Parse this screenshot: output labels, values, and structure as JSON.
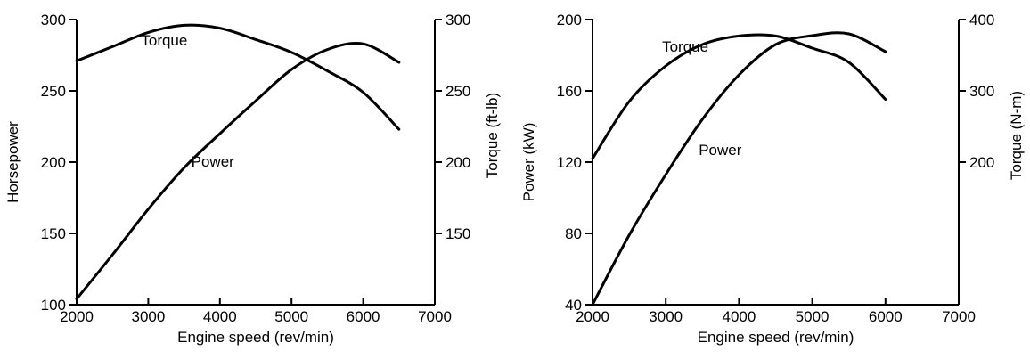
{
  "chart_data": [
    {
      "type": "line",
      "xlabel": "Engine speed (rev/min)",
      "ylabel": "Horsepower",
      "y2label": "Torque (ft-lb)",
      "xlim": [
        2000,
        7000
      ],
      "ylim": [
        100,
        300
      ],
      "y2lim": [
        100,
        300
      ],
      "x_ticks": [
        2000,
        3000,
        4000,
        5000,
        6000,
        7000
      ],
      "y_ticks": [
        100,
        150,
        200,
        250,
        300
      ],
      "y2_ticks": [
        150,
        200,
        250,
        300
      ],
      "grid": false,
      "series": [
        {
          "name": "Torque",
          "axis": "right",
          "x": [
            2000,
            2500,
            3000,
            3500,
            4000,
            4500,
            5000,
            5500,
            6000,
            6500
          ],
          "y": [
            271,
            281,
            291,
            296,
            294,
            286,
            277,
            264,
            249,
            223
          ]
        },
        {
          "name": "Power",
          "axis": "left",
          "x": [
            2000,
            2500,
            3000,
            3500,
            4000,
            4500,
            5000,
            5500,
            6000,
            6500
          ],
          "y": [
            104,
            135,
            167,
            196,
            220,
            243,
            265,
            279,
            283,
            270
          ]
        }
      ]
    },
    {
      "type": "line",
      "xlabel": "Engine speed (rev/min)",
      "ylabel": "Power (kW)",
      "y2label": "Torque (N-m)",
      "xlim": [
        2000,
        7000
      ],
      "ylim": [
        40,
        200
      ],
      "y2lim": [
        0,
        400
      ],
      "x_ticks": [
        2000,
        3000,
        4000,
        5000,
        6000,
        7000
      ],
      "y_ticks": [
        40,
        80,
        120,
        160,
        200
      ],
      "y2_ticks": [
        200,
        300,
        400
      ],
      "grid": false,
      "series": [
        {
          "name": "Torque",
          "axis": "right",
          "x": [
            2000,
            2500,
            3000,
            3500,
            4000,
            4500,
            5000,
            5500,
            6000
          ],
          "y": [
            205,
            285,
            335,
            365,
            377,
            377,
            360,
            340,
            288
          ]
        },
        {
          "name": "Power",
          "axis": "left",
          "x": [
            2000,
            2500,
            3000,
            3500,
            4000,
            4500,
            5000,
            5500,
            6000
          ],
          "y": [
            40,
            79,
            113,
            144,
            169,
            186,
            191,
            192,
            182
          ]
        }
      ]
    }
  ]
}
